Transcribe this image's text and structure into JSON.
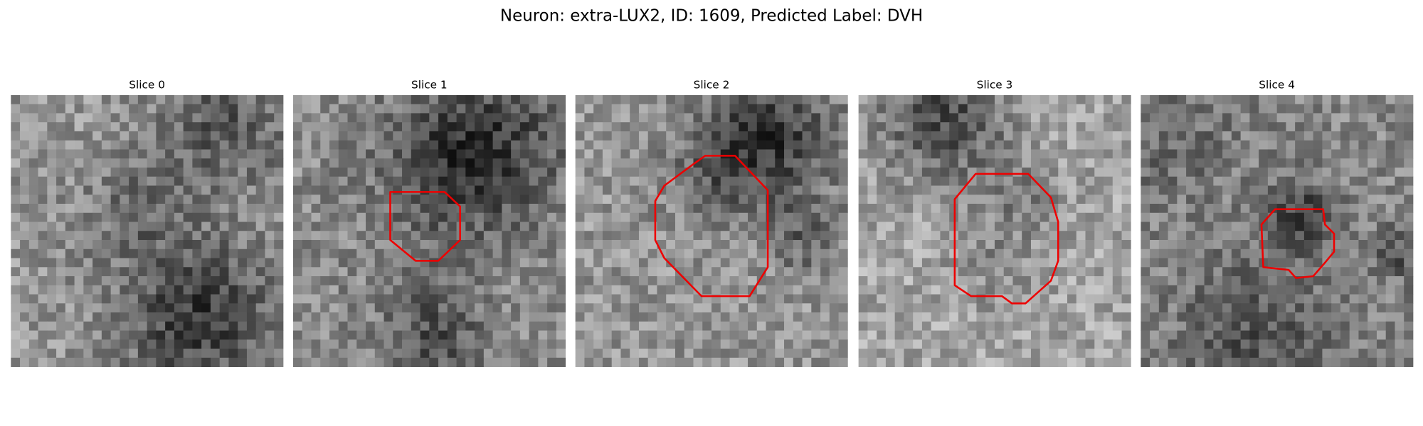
{
  "title": "Neuron: extra-LUX2, ID: 1609, Predicted Label: DVH",
  "panels": [
    {
      "title": "Slice 0"
    },
    {
      "title": "Slice 1"
    },
    {
      "title": "Slice 2"
    },
    {
      "title": "Slice 3"
    },
    {
      "title": "Slice 4"
    }
  ]
}
